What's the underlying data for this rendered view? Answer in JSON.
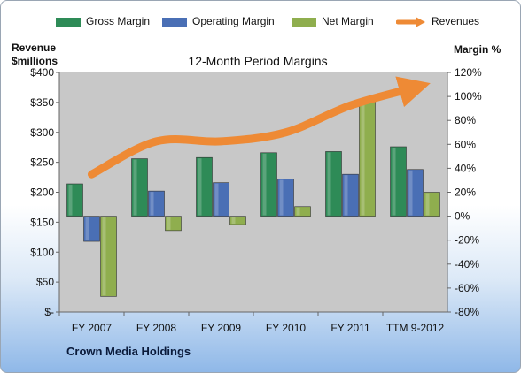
{
  "chart_data": {
    "type": "bar",
    "title": "12-Month Period Margins",
    "company": "Crown Media Holdings",
    "left_axis": {
      "label_line1": "Revenue",
      "label_line2": "$millions",
      "range": [
        0,
        400
      ],
      "ticks": [
        "$-",
        "$50",
        "$100",
        "$150",
        "$200",
        "$250",
        "$300",
        "$350",
        "$400"
      ]
    },
    "right_axis": {
      "label": "Margin %",
      "range": [
        -80,
        120
      ],
      "ticks": [
        "-80%",
        "-60%",
        "-40%",
        "-20%",
        "0%",
        "20%",
        "40%",
        "60%",
        "80%",
        "100%",
        "120%"
      ]
    },
    "categories": [
      "FY 2007",
      "FY 2008",
      "FY 2009",
      "FY 2010",
      "FY 2011",
      "TTM 9-2012"
    ],
    "series": [
      {
        "name": "Gross Margin",
        "axis": "right",
        "color": "#2e8b57",
        "values": [
          27,
          48,
          49,
          53,
          54,
          58
        ]
      },
      {
        "name": "Operating Margin",
        "axis": "right",
        "color": "#4a6fb5",
        "values": [
          -21,
          21,
          28,
          31,
          35,
          39
        ]
      },
      {
        "name": "Net Margin",
        "axis": "right",
        "color": "#8fae4e",
        "values": [
          -67,
          -12,
          -7,
          8,
          98,
          20
        ]
      },
      {
        "name": "Revenues",
        "axis": "left",
        "type": "line",
        "color": "#ee8a35",
        "values": [
          230,
          285,
          285,
          300,
          345,
          375
        ]
      }
    ],
    "grid": false,
    "legend": "top"
  }
}
